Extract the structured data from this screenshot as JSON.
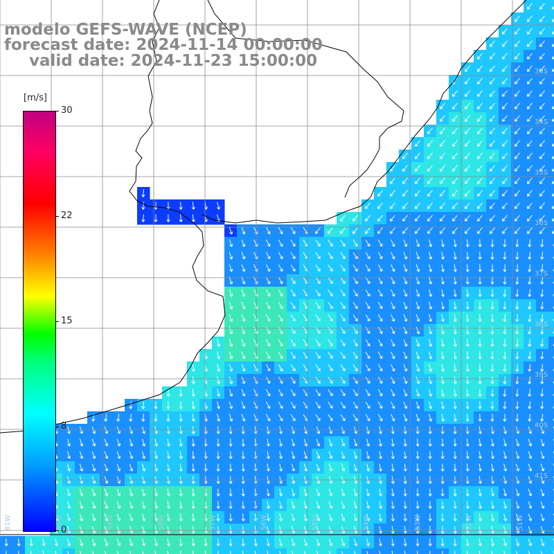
{
  "title": {
    "model": "modelo GEFS-WAVE (NCEP)",
    "forecast": "forecast date: 2024-11-14 00:00:00",
    "valid": "valid date: 2024-11-23 15:00:00"
  },
  "colorbar": {
    "unit": "[m/s]",
    "ticks": [
      "30",
      "22",
      "15",
      "8",
      "0"
    ],
    "colors": [
      "#0000ff",
      "#00a0ff",
      "#00ffff",
      "#00ff80",
      "#00ff00",
      "#ffff00",
      "#ff8000",
      "#ff0000",
      "#ff0060",
      "#c00080"
    ]
  },
  "map": {
    "lat_labels": [
      "33S",
      "34S",
      "35S",
      "36S",
      "37S",
      "38S",
      "39S",
      "40S",
      "41S"
    ],
    "lon_labels": [
      "61W",
      "60W",
      "59W",
      "58W",
      "57W",
      "56W",
      "55W",
      "54W",
      "53W",
      "52W",
      "51W"
    ],
    "ocean_colors": {
      "deep_blue": "#0b3cff",
      "mid_blue": "#1a8fff",
      "light_blue": "#1ec8ff",
      "cyan": "#2ee6e6",
      "green_cyan": "#3de8b8"
    },
    "land_color": "#ffffff",
    "arrow_color": "#ffffff"
  }
}
